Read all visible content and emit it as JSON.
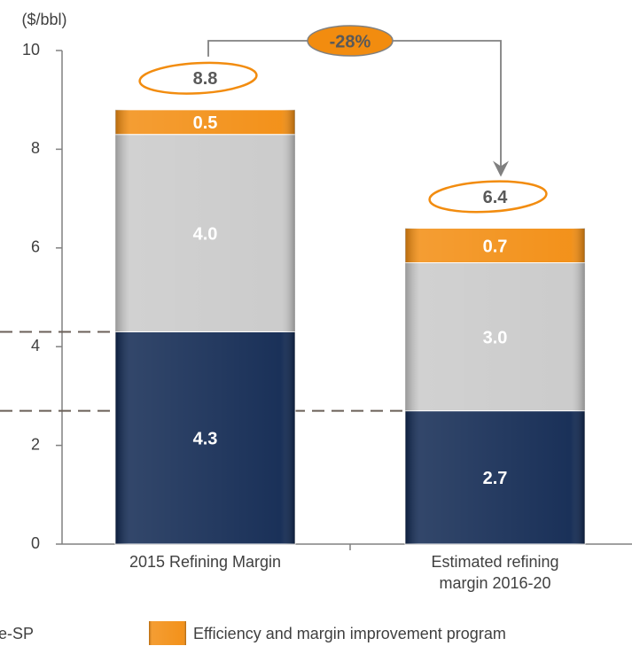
{
  "chart_data": {
    "type": "stacked-bar",
    "y_axis_label": "($/bbl)",
    "categories": [
      "2015 Refining Margin",
      "Estimated refining margin 2016-20"
    ],
    "series": [
      {
        "name": "e-SP",
        "color": "#0e2650",
        "values": [
          4.3,
          2.7
        ],
        "value_labels": [
          "4.3",
          "2.7"
        ]
      },
      {
        "color": "#c9c9c9",
        "values": [
          4.0,
          3.0
        ],
        "value_labels": [
          "4.0",
          "3.0"
        ]
      },
      {
        "name": "Efficiency and margin improvement program",
        "color": "#f28c0f",
        "values": [
          0.5,
          0.7
        ],
        "value_labels": [
          "0.5",
          "0.7"
        ]
      }
    ],
    "totals": [
      8.8,
      6.4
    ],
    "change_label": "-28%",
    "ylim": [
      0,
      10
    ],
    "yticks": [
      0,
      2,
      4,
      6,
      8,
      10
    ]
  }
}
